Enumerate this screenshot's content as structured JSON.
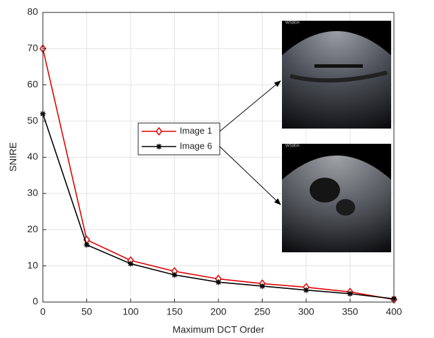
{
  "chart_data": {
    "type": "line",
    "xlabel": "Maximum DCT Order",
    "ylabel": "SNIRE",
    "x": [
      0,
      50,
      100,
      150,
      200,
      250,
      300,
      350,
      400
    ],
    "series": [
      {
        "name": "Image 1",
        "color": "#e00000",
        "marker": "diamond",
        "values": [
          70,
          17.2,
          11.5,
          8.5,
          6.4,
          5.1,
          4.1,
          2.8,
          0.7
        ]
      },
      {
        "name": "Image 6",
        "color": "#000000",
        "marker": "asterisk",
        "values": [
          52,
          15.8,
          10.6,
          7.5,
          5.5,
          4.4,
          3.3,
          2.3,
          0.9
        ]
      }
    ],
    "xlim": [
      0,
      400
    ],
    "xticks": [
      0,
      50,
      100,
      150,
      200,
      250,
      300,
      350,
      400
    ],
    "ylim": [
      0,
      80
    ],
    "yticks": [
      0,
      10,
      20,
      30,
      40,
      50,
      60,
      70,
      80
    ],
    "grid": true,
    "annotations": [
      "WS80A",
      "WS80A"
    ]
  }
}
